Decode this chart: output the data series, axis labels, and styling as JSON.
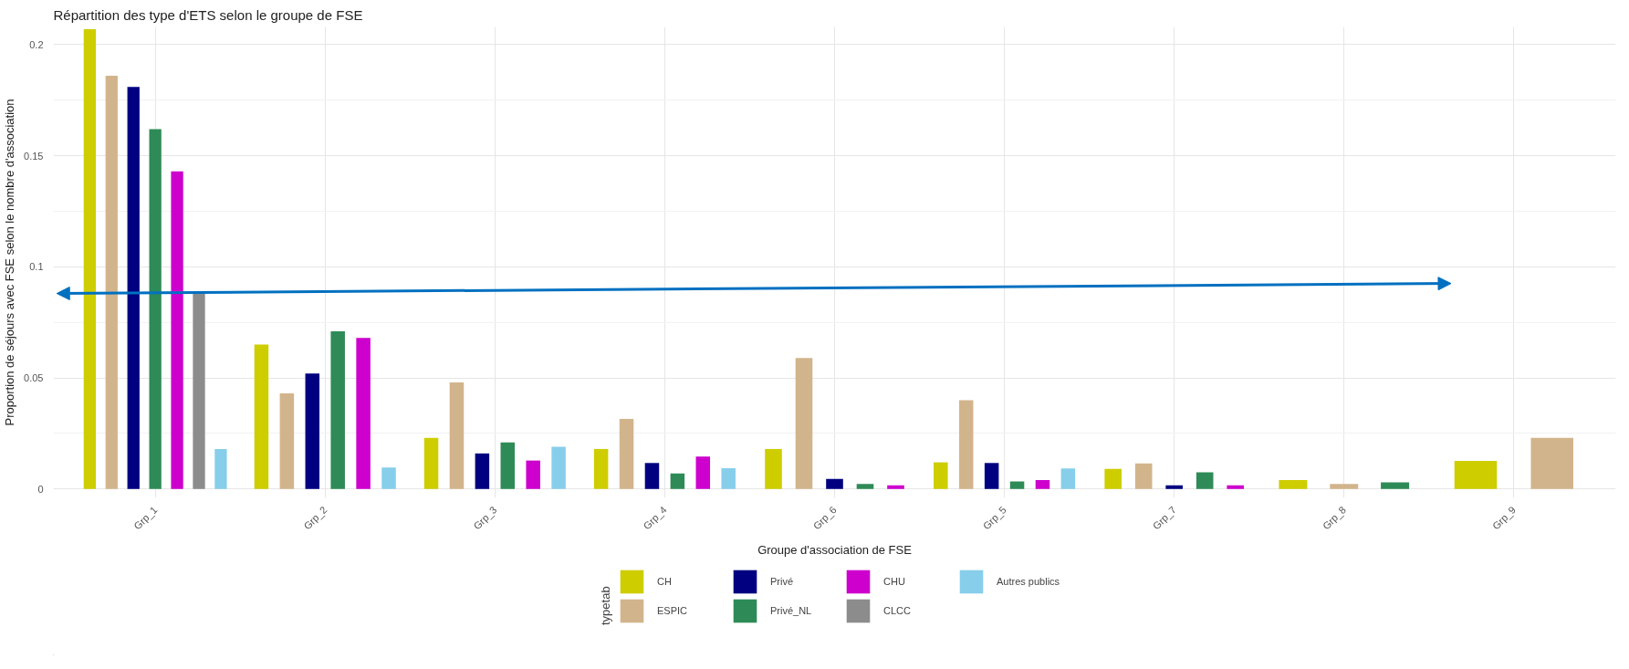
{
  "chart_data": {
    "type": "bar",
    "title": "Répartition des type d'ETS selon le groupe de FSE",
    "xlabel": "Groupe d'association de FSE",
    "ylabel": "Proportion de séjours avec FSE selon le nombre d'association",
    "legend_title": "typetab",
    "categories": [
      "Grp_1",
      "Grp_2",
      "Grp_3",
      "Grp_4",
      "Grp_6",
      "Grp_5",
      "Grp_7",
      "Grp_8",
      "Grp_9"
    ],
    "series": [
      {
        "name": "CH",
        "color": "#cdcd00",
        "values": [
          0.207,
          0.065,
          0.023,
          0.018,
          0.018,
          0.012,
          0.009,
          0.004,
          0.0126
        ]
      },
      {
        "name": "ESPIC",
        "color": "#d2b48c",
        "values": [
          0.186,
          0.043,
          0.048,
          0.0315,
          0.059,
          0.04,
          0.0115,
          0.0023,
          0.023
        ]
      },
      {
        "name": "Privé",
        "color": "#000080",
        "values": [
          0.181,
          0.052,
          0.016,
          0.0117,
          0.0045,
          0.0117,
          0.0017,
          null,
          null
        ]
      },
      {
        "name": "Privé_NL",
        "color": "#2e8b57",
        "values": [
          0.162,
          0.071,
          0.021,
          0.007,
          0.0023,
          0.0034,
          0.0075,
          0.003,
          null
        ]
      },
      {
        "name": "CHU",
        "color": "#cd00cd",
        "values": [
          0.143,
          0.068,
          0.0128,
          0.0146,
          0.0016,
          0.004,
          0.0017,
          null,
          null
        ]
      },
      {
        "name": "CLCC",
        "color": "#8c8c8c",
        "values": [
          0.088,
          null,
          null,
          null,
          null,
          null,
          null,
          null,
          null
        ]
      },
      {
        "name": "Autres publics",
        "color": "#87ceeb",
        "values": [
          0.018,
          0.0097,
          0.019,
          0.0094,
          null,
          0.0093,
          null,
          null,
          null
        ]
      }
    ],
    "ylim": [
      -0.004,
      0.208
    ],
    "yticks": [
      0,
      0.05,
      0.1,
      0.15,
      0.2
    ],
    "grid": true,
    "legend": "bottom"
  }
}
